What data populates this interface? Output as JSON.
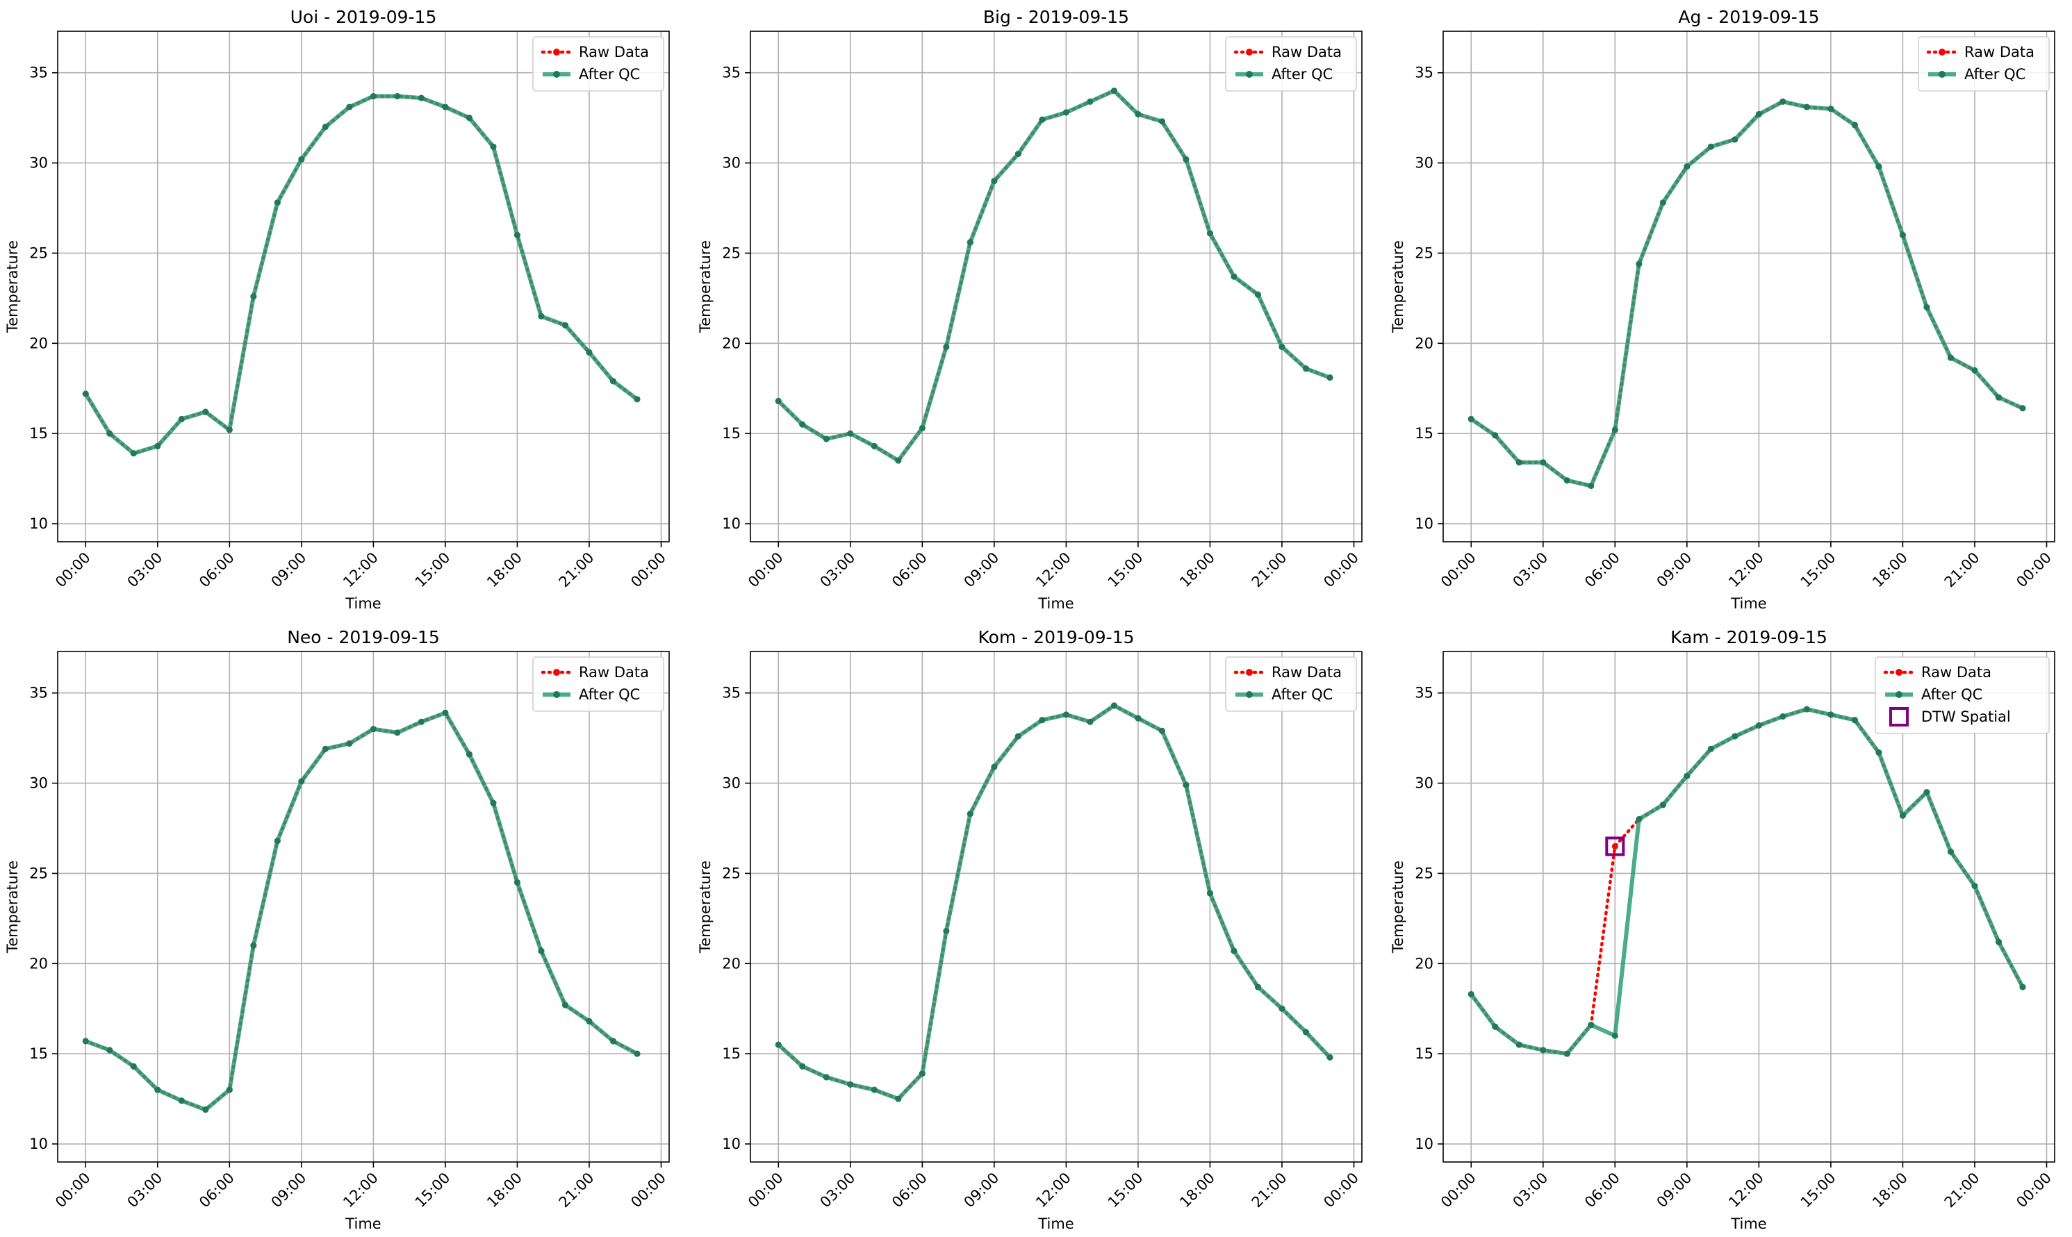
{
  "figure": {
    "x_tick_labels": [
      "00:00",
      "03:00",
      "06:00",
      "09:00",
      "12:00",
      "15:00",
      "18:00",
      "21:00",
      "00:00"
    ],
    "y_ticks": [
      10,
      15,
      20,
      25,
      30,
      35
    ],
    "colors": {
      "raw": "#ff0000",
      "qc": "#2a9d77",
      "qc_marker": "#1f7a5c",
      "dtw": "#800080",
      "grid": "#b0b0b0"
    }
  },
  "chart_data": [
    {
      "type": "line",
      "title": "Uoi - 2019-09-15",
      "xlabel": "Time",
      "ylabel": "Temperature",
      "xlim": [
        "00:00",
        "00:00"
      ],
      "ylim": [
        9,
        37.3
      ],
      "grid": true,
      "legend_position": "top-right",
      "legend": [
        "Raw Data",
        "After QC"
      ],
      "x": [
        "00:00",
        "01:00",
        "02:00",
        "03:00",
        "04:00",
        "05:00",
        "06:00",
        "07:00",
        "08:00",
        "09:00",
        "10:00",
        "11:00",
        "12:00",
        "13:00",
        "14:00",
        "15:00",
        "16:00",
        "17:00",
        "18:00",
        "19:00",
        "20:00",
        "21:00",
        "22:00",
        "23:00"
      ],
      "series": [
        {
          "name": "Raw Data",
          "values": [
            17.2,
            15.0,
            13.9,
            14.3,
            15.8,
            16.2,
            15.2,
            22.6,
            27.8,
            30.2,
            32.0,
            33.1,
            33.7,
            33.7,
            33.6,
            33.1,
            32.5,
            30.9,
            26.0,
            21.5,
            21.0,
            19.5,
            17.9,
            16.9
          ]
        },
        {
          "name": "After QC",
          "values": [
            17.2,
            15.0,
            13.9,
            14.3,
            15.8,
            16.2,
            15.2,
            22.6,
            27.8,
            30.2,
            32.0,
            33.1,
            33.7,
            33.7,
            33.6,
            33.1,
            32.5,
            30.9,
            26.0,
            21.5,
            21.0,
            19.5,
            17.9,
            16.9
          ]
        }
      ]
    },
    {
      "type": "line",
      "title": "Big - 2019-09-15",
      "xlabel": "Time",
      "ylabel": "Temperature",
      "xlim": [
        "00:00",
        "00:00"
      ],
      "ylim": [
        9,
        37.3
      ],
      "grid": true,
      "legend_position": "top-right",
      "legend": [
        "Raw Data",
        "After QC"
      ],
      "x": [
        "00:00",
        "01:00",
        "02:00",
        "03:00",
        "04:00",
        "05:00",
        "06:00",
        "07:00",
        "08:00",
        "09:00",
        "10:00",
        "11:00",
        "12:00",
        "13:00",
        "14:00",
        "15:00",
        "16:00",
        "17:00",
        "18:00",
        "19:00",
        "20:00",
        "21:00",
        "22:00",
        "23:00"
      ],
      "series": [
        {
          "name": "Raw Data",
          "values": [
            16.8,
            15.5,
            14.7,
            15.0,
            14.3,
            13.5,
            15.3,
            19.8,
            25.6,
            29.0,
            30.5,
            32.4,
            32.8,
            33.4,
            34.0,
            32.7,
            32.3,
            30.2,
            26.1,
            23.7,
            22.7,
            19.8,
            18.6,
            18.1
          ]
        },
        {
          "name": "After QC",
          "values": [
            16.8,
            15.5,
            14.7,
            15.0,
            14.3,
            13.5,
            15.3,
            19.8,
            25.6,
            29.0,
            30.5,
            32.4,
            32.8,
            33.4,
            34.0,
            32.7,
            32.3,
            30.2,
            26.1,
            23.7,
            22.7,
            19.8,
            18.6,
            18.1
          ]
        }
      ]
    },
    {
      "type": "line",
      "title": "Ag - 2019-09-15",
      "xlabel": "Time",
      "ylabel": "Temperature",
      "xlim": [
        "00:00",
        "00:00"
      ],
      "ylim": [
        9,
        37.3
      ],
      "grid": true,
      "legend_position": "top-right",
      "legend": [
        "Raw Data",
        "After QC"
      ],
      "x": [
        "00:00",
        "01:00",
        "02:00",
        "03:00",
        "04:00",
        "05:00",
        "06:00",
        "07:00",
        "08:00",
        "09:00",
        "10:00",
        "11:00",
        "12:00",
        "13:00",
        "14:00",
        "15:00",
        "16:00",
        "17:00",
        "18:00",
        "19:00",
        "20:00",
        "21:00",
        "22:00",
        "23:00"
      ],
      "series": [
        {
          "name": "Raw Data",
          "values": [
            15.8,
            14.9,
            13.4,
            13.4,
            12.4,
            12.1,
            15.2,
            24.4,
            27.8,
            29.8,
            30.9,
            31.3,
            32.7,
            33.4,
            33.1,
            33.0,
            32.1,
            29.8,
            26.0,
            22.0,
            19.2,
            18.5,
            17.0,
            16.4
          ]
        },
        {
          "name": "After QC",
          "values": [
            15.8,
            14.9,
            13.4,
            13.4,
            12.4,
            12.1,
            15.2,
            24.4,
            27.8,
            29.8,
            30.9,
            31.3,
            32.7,
            33.4,
            33.1,
            33.0,
            32.1,
            29.8,
            26.0,
            22.0,
            19.2,
            18.5,
            17.0,
            16.4
          ]
        }
      ]
    },
    {
      "type": "line",
      "title": "Neo - 2019-09-15",
      "xlabel": "Time",
      "ylabel": "Temperature",
      "xlim": [
        "00:00",
        "00:00"
      ],
      "ylim": [
        9,
        37.3
      ],
      "grid": true,
      "legend_position": "top-right",
      "legend": [
        "Raw Data",
        "After QC"
      ],
      "x": [
        "00:00",
        "01:00",
        "02:00",
        "03:00",
        "04:00",
        "05:00",
        "06:00",
        "07:00",
        "08:00",
        "09:00",
        "10:00",
        "11:00",
        "12:00",
        "13:00",
        "14:00",
        "15:00",
        "16:00",
        "17:00",
        "18:00",
        "19:00",
        "20:00",
        "21:00",
        "22:00",
        "23:00"
      ],
      "series": [
        {
          "name": "Raw Data",
          "values": [
            15.7,
            15.2,
            14.3,
            13.0,
            12.4,
            11.9,
            13.0,
            21.0,
            26.8,
            30.1,
            31.9,
            32.2,
            33.0,
            32.8,
            33.4,
            33.9,
            31.6,
            28.9,
            24.5,
            20.7,
            17.7,
            16.8,
            15.7,
            15.0
          ]
        },
        {
          "name": "After QC",
          "values": [
            15.7,
            15.2,
            14.3,
            13.0,
            12.4,
            11.9,
            13.0,
            21.0,
            26.8,
            30.1,
            31.9,
            32.2,
            33.0,
            32.8,
            33.4,
            33.9,
            31.6,
            28.9,
            24.5,
            20.7,
            17.7,
            16.8,
            15.7,
            15.0
          ]
        }
      ]
    },
    {
      "type": "line",
      "title": "Kom - 2019-09-15",
      "xlabel": "Time",
      "ylabel": "Temperature",
      "xlim": [
        "00:00",
        "00:00"
      ],
      "ylim": [
        9,
        37.3
      ],
      "grid": true,
      "legend_position": "top-right",
      "legend": [
        "Raw Data",
        "After QC"
      ],
      "x": [
        "00:00",
        "01:00",
        "02:00",
        "03:00",
        "04:00",
        "05:00",
        "06:00",
        "07:00",
        "08:00",
        "09:00",
        "10:00",
        "11:00",
        "12:00",
        "13:00",
        "14:00",
        "15:00",
        "16:00",
        "17:00",
        "18:00",
        "19:00",
        "20:00",
        "21:00",
        "22:00",
        "23:00"
      ],
      "series": [
        {
          "name": "Raw Data",
          "values": [
            15.5,
            14.3,
            13.7,
            13.3,
            13.0,
            12.5,
            13.9,
            21.8,
            28.3,
            30.9,
            32.6,
            33.5,
            33.8,
            33.4,
            34.3,
            33.6,
            32.9,
            29.9,
            23.9,
            20.7,
            18.7,
            17.5,
            16.2,
            14.8
          ]
        },
        {
          "name": "After QC",
          "values": [
            15.5,
            14.3,
            13.7,
            13.3,
            13.0,
            12.5,
            13.9,
            21.8,
            28.3,
            30.9,
            32.6,
            33.5,
            33.8,
            33.4,
            34.3,
            33.6,
            32.9,
            29.9,
            23.9,
            20.7,
            18.7,
            17.5,
            16.2,
            14.8
          ]
        }
      ]
    },
    {
      "type": "line",
      "title": "Kam - 2019-09-15",
      "xlabel": "Time",
      "ylabel": "Temperature",
      "xlim": [
        "00:00",
        "00:00"
      ],
      "ylim": [
        9,
        37.3
      ],
      "grid": true,
      "legend_position": "top-right",
      "legend": [
        "Raw Data",
        "After QC",
        "DTW Spatial"
      ],
      "x": [
        "00:00",
        "01:00",
        "02:00",
        "03:00",
        "04:00",
        "05:00",
        "06:00",
        "07:00",
        "08:00",
        "09:00",
        "10:00",
        "11:00",
        "12:00",
        "13:00",
        "14:00",
        "15:00",
        "16:00",
        "17:00",
        "18:00",
        "19:00",
        "20:00",
        "21:00",
        "22:00",
        "23:00"
      ],
      "series": [
        {
          "name": "Raw Data",
          "values": [
            18.3,
            16.5,
            15.5,
            15.2,
            15.0,
            16.6,
            26.5,
            28.0,
            28.8,
            30.4,
            31.9,
            32.6,
            33.2,
            33.7,
            34.1,
            33.8,
            33.5,
            31.7,
            28.2,
            29.5,
            26.2,
            24.3,
            21.2,
            18.7
          ]
        },
        {
          "name": "After QC",
          "values": [
            18.3,
            16.5,
            15.5,
            15.2,
            15.0,
            16.6,
            16.0,
            28.0,
            28.8,
            30.4,
            31.9,
            32.6,
            33.2,
            33.7,
            34.1,
            33.8,
            33.5,
            31.7,
            28.2,
            29.5,
            26.2,
            24.3,
            21.2,
            18.7
          ]
        }
      ],
      "flagged": [
        {
          "label": "DTW Spatial",
          "x": "06:00",
          "y": 26.5
        }
      ]
    }
  ]
}
